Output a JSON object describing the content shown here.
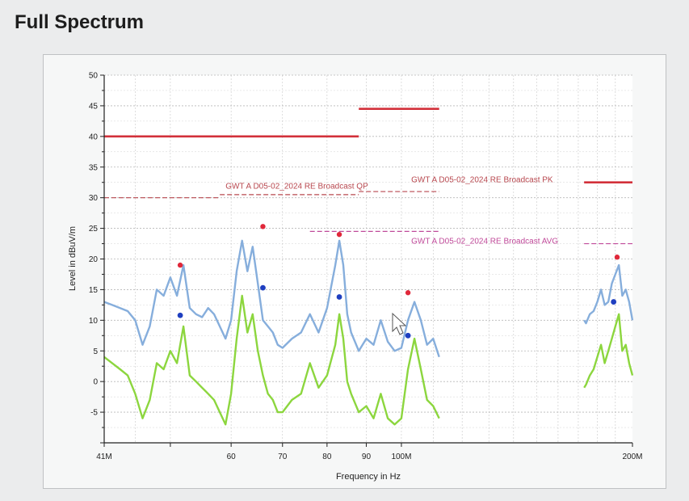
{
  "page": {
    "heading": "Full Spectrum"
  },
  "colors": {
    "background": "#ebeced",
    "plot_background": "#ffffff",
    "grid": "#b0b0b0",
    "limit_pk": "#d2303a",
    "limit_qp": "#b8484f",
    "limit_avg": "#c04a9a",
    "peak_trace": "#86aedc",
    "avg_trace": "#8cd63e",
    "peak_marker": "#e0283a",
    "avg_marker": "#1f3fc0"
  },
  "chart_data": {
    "type": "line",
    "title": "",
    "xlabel": "Frequency in Hz",
    "ylabel": "Level in dBuV/m",
    "xscale": "log",
    "xlim": [
      41000000,
      200000000
    ],
    "ylim": [
      -10,
      50
    ],
    "grid": true,
    "x_tick_labels": [
      {
        "value": 41000000,
        "label": "41M"
      },
      {
        "value": 60000000,
        "label": "60"
      },
      {
        "value": 70000000,
        "label": "70"
      },
      {
        "value": 80000000,
        "label": "80"
      },
      {
        "value": 90000000,
        "label": "90"
      },
      {
        "value": 100000000,
        "label": "100M"
      },
      {
        "value": 200000000,
        "label": "200M"
      }
    ],
    "x_minor_ticks": [
      50000000
    ],
    "y_ticks": [
      -5,
      0,
      5,
      10,
      15,
      20,
      25,
      30,
      35,
      40,
      45,
      50
    ],
    "limit_lines": [
      {
        "name": "PK",
        "label": "",
        "style": "solid",
        "color": "#d2303a",
        "segments": [
          {
            "x": [
              41000000,
              88000000
            ],
            "y": 40
          },
          {
            "x": [
              88000000,
              112000000
            ],
            "y": 44.5
          },
          {
            "x": [
              173000000,
              200000000
            ],
            "y": 32.5
          }
        ]
      },
      {
        "name": "QP",
        "label": "",
        "style": "dashed",
        "color": "#b8484f",
        "segments": [
          {
            "x": [
              41000000,
              58000000
            ],
            "y": 30
          },
          {
            "x": [
              58000000,
              88000000
            ],
            "y": 30.5
          },
          {
            "x": [
              88000000,
              112000000
            ],
            "y": 31
          }
        ]
      },
      {
        "name": "AVG",
        "label": "",
        "style": "dashed",
        "color": "#c04a9a",
        "segments": [
          {
            "x": [
              76000000,
              112000000
            ],
            "y": 24.5
          },
          {
            "x": [
              173000000,
              200000000
            ],
            "y": 22.5
          }
        ]
      }
    ],
    "annotations": [
      {
        "text": "GWT A D05-02_2024 RE Broadcast QP",
        "x": 59000000,
        "y": 31.5,
        "color": "#b8484f"
      },
      {
        "text": "GWT A D05-02_2024 RE Broadcast PK",
        "x": 103000000,
        "y": 32.5,
        "color": "#b8484f"
      },
      {
        "text": "GWT A D05-02_2024 RE Broadcast AVG",
        "x": 103000000,
        "y": 22.5,
        "color": "#c04a9a"
      }
    ],
    "series": [
      {
        "name": "",
        "color": "#86aedc",
        "segments": [
          {
            "x": [
              41000000,
              42000000,
              43000000,
              44000000,
              45000000,
              46000000,
              47000000,
              48000000,
              49000000,
              50000000,
              51000000,
              52000000,
              53000000,
              54000000,
              55000000,
              56000000,
              57000000,
              58000000,
              59000000,
              60000000,
              61000000,
              62000000,
              63000000,
              64000000,
              65000000,
              66000000,
              67000000,
              68000000,
              69000000,
              70000000,
              72000000,
              74000000,
              76000000,
              78000000,
              80000000,
              82000000,
              83000000,
              84000000,
              85000000,
              86000000,
              88000000,
              90000000,
              92000000,
              94000000,
              96000000,
              98000000,
              100000000,
              102000000,
              104000000,
              106000000,
              108000000,
              110000000,
              112000000
            ],
            "y": [
              13,
              12.5,
              12,
              11.5,
              10,
              6,
              9,
              15,
              14,
              17,
              14,
              19,
              12,
              11,
              10.5,
              12,
              11,
              9,
              7,
              10,
              18,
              23,
              18,
              22,
              16,
              10,
              9,
              8,
              6,
              5.5,
              7,
              8,
              11,
              8,
              12,
              19,
              23,
              19,
              11,
              8,
              5,
              7,
              6,
              10,
              6.5,
              5,
              5.5,
              10,
              13,
              10,
              6,
              7,
              4
            ]
          },
          {
            "x": [
              173000000,
              174000000,
              176000000,
              178000000,
              180000000,
              182000000,
              184000000,
              186000000,
              188000000,
              190000000,
              192000000,
              194000000,
              196000000,
              198000000,
              200000000
            ],
            "y": [
              10,
              9.5,
              11,
              11.5,
              13,
              15,
              12.5,
              13,
              16,
              17.5,
              19,
              14,
              15,
              13,
              10
            ]
          }
        ]
      },
      {
        "name": "",
        "color": "#8cd63e",
        "segments": [
          {
            "x": [
              41000000,
              42000000,
              43000000,
              44000000,
              45000000,
              46000000,
              47000000,
              48000000,
              49000000,
              50000000,
              51000000,
              52000000,
              53000000,
              54000000,
              55000000,
              56000000,
              57000000,
              58000000,
              59000000,
              60000000,
              61000000,
              62000000,
              63000000,
              64000000,
              65000000,
              66000000,
              67000000,
              68000000,
              69000000,
              70000000,
              72000000,
              74000000,
              76000000,
              78000000,
              80000000,
              82000000,
              83000000,
              84000000,
              85000000,
              86000000,
              88000000,
              90000000,
              92000000,
              94000000,
              96000000,
              98000000,
              100000000,
              102000000,
              104000000,
              106000000,
              108000000,
              110000000,
              112000000
            ],
            "y": [
              4,
              3,
              2,
              1,
              -2,
              -6,
              -3,
              3,
              2,
              5,
              3,
              9,
              1,
              0,
              -1,
              -2,
              -3,
              -5,
              -7,
              -2,
              7,
              14,
              8,
              11,
              5,
              1,
              -2,
              -3,
              -5,
              -5,
              -3,
              -2,
              3,
              -1,
              1,
              6,
              11,
              7,
              0,
              -2,
              -5,
              -4,
              -6,
              -2,
              -6,
              -7,
              -6,
              2,
              7,
              2,
              -3,
              -4,
              -6
            ]
          },
          {
            "x": [
              173000000,
              174000000,
              176000000,
              178000000,
              180000000,
              182000000,
              184000000,
              186000000,
              188000000,
              190000000,
              192000000,
              194000000,
              196000000,
              198000000,
              200000000
            ],
            "y": [
              -1,
              -0.5,
              1,
              2,
              4,
              6,
              3,
              5,
              7,
              9,
              11,
              5,
              6,
              3,
              1
            ]
          }
        ]
      }
    ],
    "markers": [
      {
        "series": "peak",
        "color": "#e0283a",
        "points": [
          {
            "x": 51500000,
            "y": 19
          },
          {
            "x": 66000000,
            "y": 25.3
          },
          {
            "x": 83000000,
            "y": 24
          },
          {
            "x": 102000000,
            "y": 14.5
          },
          {
            "x": 191000000,
            "y": 20.3
          }
        ]
      },
      {
        "series": "average",
        "color": "#1f3fc0",
        "points": [
          {
            "x": 51500000,
            "y": 10.8
          },
          {
            "x": 66000000,
            "y": 15.3
          },
          {
            "x": 83000000,
            "y": 13.8
          },
          {
            "x": 102000000,
            "y": 7.5
          },
          {
            "x": 189000000,
            "y": 13
          }
        ]
      }
    ]
  }
}
